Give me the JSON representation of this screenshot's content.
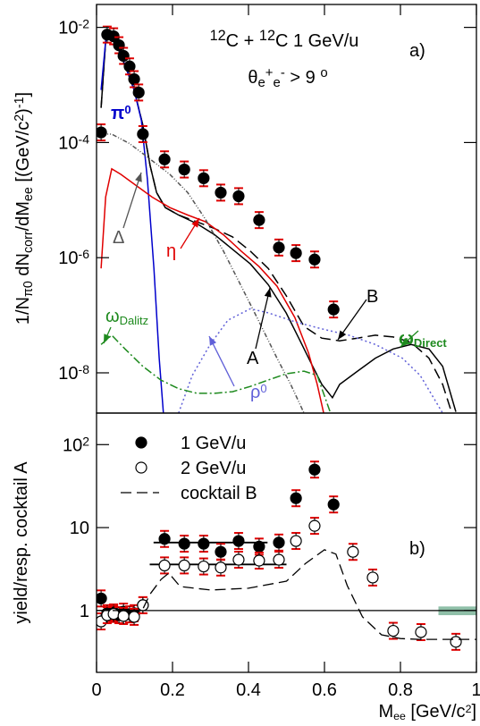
{
  "chart_data": [
    {
      "type": "line",
      "title": [
        {
          "t": "12",
          "s": "sup"
        },
        {
          "t": "C + "
        },
        {
          "t": "12",
          "s": "sup"
        },
        {
          "t": "C  1 GeV/u"
        }
      ],
      "subtitle": [
        {
          "t": "θ"
        },
        {
          "t": "e",
          "s": "sub"
        },
        {
          "t": "+",
          "s": "sup"
        },
        {
          "t": "e",
          "s": "sub"
        },
        {
          "t": "-",
          "s": "sup"
        },
        {
          "t": " > 9 "
        },
        {
          "t": "o",
          "s": "sup"
        }
      ],
      "panel_label": "a)",
      "y_label": [
        {
          "t": "1/N"
        },
        {
          "t": "π",
          "s": "sub"
        },
        {
          "t": "0",
          "s": "sub"
        },
        {
          "t": " dN"
        },
        {
          "t": "corr",
          "s": "sub"
        },
        {
          "t": "/dM"
        },
        {
          "t": "ee",
          "s": "sub"
        },
        {
          "t": "  [(GeV/c"
        },
        {
          "t": "2",
          "s": "sup"
        },
        {
          "t": ")"
        },
        {
          "t": "-1",
          "s": "sup"
        },
        {
          "t": "]"
        }
      ],
      "ylog": true,
      "xlim": [
        0,
        1
      ],
      "ylim": [
        2e-09,
        0.025
      ],
      "yticks": [
        {
          "value": 1e-08,
          "label": "10",
          "exponent": "-8"
        },
        {
          "value": 1e-06,
          "label": "10",
          "exponent": "-6"
        },
        {
          "value": 0.0001,
          "label": "10",
          "exponent": "-4"
        },
        {
          "value": 0.01,
          "label": "10",
          "exponent": "-2"
        }
      ],
      "points": {
        "color": "#000000",
        "error_color": "#e00000",
        "x": [
          0.012,
          0.028,
          0.045,
          0.059,
          0.071,
          0.087,
          0.099,
          0.111,
          0.122,
          0.179,
          0.231,
          0.282,
          0.327,
          0.374,
          0.428,
          0.48,
          0.525,
          0.574,
          0.624
        ],
        "values": [
          0.00015,
          0.0075,
          0.007,
          0.0049,
          0.0032,
          0.0021,
          0.00126,
          0.00074,
          0.00014,
          5.1e-05,
          3.4e-05,
          2.4e-05,
          1.35e-05,
          1.17e-05,
          4.5e-06,
          1.5e-06,
          1.2e-06,
          9.3e-07,
          1.26e-07
        ]
      },
      "curves": [
        {
          "color": "#000000",
          "dash": "none",
          "x": [
            0.012,
            0.024,
            0.035,
            0.052,
            0.075,
            0.099,
            0.122,
            0.141,
            0.158,
            0.181,
            0.216,
            0.264,
            0.311,
            0.358,
            0.405,
            0.452,
            0.499,
            0.534,
            0.569,
            0.593,
            0.621,
            0.64,
            0.687,
            0.734,
            0.781,
            0.828,
            0.875,
            0.911,
            0.946
          ],
          "values": [
            0.0004,
            0.0058,
            0.0075,
            0.0053,
            0.0022,
            0.00082,
            0.0002,
            4e-05,
            1.35e-05,
            7.4e-06,
            5.5e-06,
            3.9e-06,
            2.5e-06,
            1.4e-06,
            7.8e-07,
            3.4e-07,
            1.1e-07,
            3.8e-08,
            1.3e-08,
            6.3e-09,
            3.7e-09,
            6.3e-09,
            1.07e-08,
            1.8e-08,
            2.6e-08,
            3.1e-08,
            2.6e-08,
            1.3e-08,
            2.1e-09
          ]
        },
        {
          "color": "#000000",
          "dash": "12,6",
          "x": [
            0.012,
            0.024,
            0.035,
            0.052,
            0.075,
            0.099,
            0.122,
            0.141,
            0.158,
            0.181,
            0.216,
            0.264,
            0.311,
            0.358,
            0.405,
            0.452,
            0.499,
            0.546,
            0.593,
            0.64,
            0.687,
            0.734,
            0.781,
            0.828,
            0.875,
            0.911,
            0.934
          ],
          "values": [
            0.0004,
            0.0058,
            0.0075,
            0.0053,
            0.0022,
            0.00082,
            0.0002,
            4e-05,
            1.35e-05,
            7.4e-06,
            5.5e-06,
            4.2e-06,
            3.2e-06,
            2.3e-06,
            1.3e-06,
            6.5e-07,
            2.2e-07,
            6.4e-08,
            4e-08,
            3.6e-08,
            4e-08,
            4.5e-08,
            4.2e-08,
            3.4e-08,
            1.8e-08,
            6.3e-09,
            2.1e-09
          ]
        },
        {
          "color": "#0000cc",
          "dash": "none",
          "x": [
            0.012,
            0.024,
            0.035,
            0.052,
            0.075,
            0.099,
            0.118,
            0.134,
            0.151,
            0.165,
            0.176
          ],
          "values": [
            0.00082,
            0.0058,
            0.007,
            0.0053,
            0.0022,
            0.00082,
            0.00024,
            2.3e-05,
            6.5e-07,
            1.8e-08,
            2e-09
          ]
        },
        {
          "color": "#e00000",
          "dash": "none",
          "x": [
            0.012,
            0.024,
            0.04,
            0.064,
            0.099,
            0.146,
            0.193,
            0.24,
            0.287,
            0.334,
            0.381,
            0.428,
            0.475,
            0.522,
            0.558,
            0.581,
            0.598
          ],
          "values": [
            6.5e-07,
            1.13e-05,
            3.5e-05,
            2.8e-05,
            1.9e-05,
            1.13e-05,
            7.4e-06,
            5.5e-06,
            4.2e-06,
            2.5e-06,
            1.3e-06,
            7e-07,
            3.2e-07,
            9.1e-08,
            2.2e-08,
            6.3e-09,
            2e-09
          ]
        },
        {
          "color": "#555555",
          "dash": "5,2,1,2,1,2",
          "x": [
            0.012,
            0.04,
            0.087,
            0.134,
            0.193,
            0.24,
            0.287,
            0.334,
            0.381,
            0.428,
            0.475,
            0.511,
            0.546
          ],
          "values": [
            0.00014,
            0.00014,
            9.6e-05,
            5.6e-05,
            2.8e-05,
            1.35e-05,
            4.6e-06,
            1.3e-06,
            3.2e-07,
            7.7e-08,
            1.8e-08,
            6.3e-09,
            2e-09
          ]
        },
        {
          "color": "#6060d8",
          "dash": "2,3",
          "x": [
            0.216,
            0.252,
            0.299,
            0.346,
            0.405,
            0.452,
            0.522,
            0.593,
            0.664,
            0.734,
            0.805,
            0.852,
            0.887,
            0.911
          ],
          "values": [
            2e-09,
            9e-09,
            3.1e-08,
            8.2e-08,
            1.3e-07,
            1.1e-07,
            7.7e-08,
            5.8e-08,
            4.5e-08,
            3.1e-08,
            1.8e-08,
            9e-09,
            3.7e-09,
            2e-09
          ]
        },
        {
          "color": "#1e8a1e",
          "dash": "9,3,2,3",
          "x": [
            0.012,
            0.04,
            0.075,
            0.122,
            0.169,
            0.216,
            0.264,
            0.311,
            0.358,
            0.405,
            0.452,
            0.499,
            0.546,
            0.581,
            0.616
          ],
          "values": [
            3.1e-08,
            4.5e-08,
            2.6e-08,
            1.3e-08,
            7.5e-09,
            5.3e-09,
            4.4e-09,
            4.4e-09,
            4.7e-09,
            5.8e-09,
            7.5e-09,
            9.6e-09,
            1.07e-08,
            9e-09,
            2e-09
          ]
        }
      ],
      "annotations": [
        {
          "color": "#0000cc",
          "text": [
            {
              "t": "π"
            },
            {
              "t": "0",
              "s": "sup"
            }
          ]
        },
        {
          "color": "#555555",
          "text": [
            {
              "t": "Δ"
            }
          ]
        },
        {
          "color": "#e00000",
          "text": [
            {
              "t": "η"
            }
          ]
        },
        {
          "color": "#1e8a1e",
          "text": [
            {
              "t": "ω"
            },
            {
              "t": "Dalitz",
              "s": "sub"
            }
          ]
        },
        {
          "color": "#6060d8",
          "text": [
            {
              "t": "ρ"
            },
            {
              "t": "0",
              "s": "sup"
            }
          ]
        },
        {
          "color": "#000000",
          "text": [
            {
              "t": "A"
            }
          ]
        },
        {
          "color": "#000000",
          "text": [
            {
              "t": "B"
            }
          ]
        },
        {
          "color": "#1e8a1e",
          "text": [
            {
              "t": "ω"
            },
            {
              "t": "Direct",
              "s": "sub"
            }
          ]
        }
      ]
    },
    {
      "type": "scatter",
      "panel_label": "b)",
      "y_label": [
        {
          "t": "yield/resp. cocktail A"
        }
      ],
      "x_label": [
        {
          "t": "M"
        },
        {
          "t": "ee",
          "s": "sub"
        },
        {
          "t": " [GeV/c"
        },
        {
          "t": "2",
          "s": "sup"
        },
        {
          "t": "]"
        }
      ],
      "ylog": true,
      "xlim": [
        0,
        1
      ],
      "ylim": [
        0.18,
        240
      ],
      "xticks": [
        0,
        0.2,
        0.4,
        0.6,
        0.8,
        1
      ],
      "yticks": [
        1,
        10,
        {
          "value": 100,
          "label": "10",
          "exponent": "2"
        }
      ],
      "reference_line": 1,
      "band": {
        "x": [
          0.9,
          1.0
        ],
        "y": [
          0.88,
          1.12
        ],
        "color": "#8fbfa8"
      },
      "series": [
        {
          "name": "1 GeV/u",
          "marker": "filled",
          "color": "#000000",
          "error_color": "#e00000",
          "x": [
            0.012,
            0.028,
            0.045,
            0.059,
            0.071,
            0.087,
            0.099,
            0.122,
            0.179,
            0.231,
            0.282,
            0.327,
            0.374,
            0.428,
            0.48,
            0.525,
            0.574,
            0.624
          ],
          "values": [
            1.4,
            0.93,
            0.95,
            0.88,
            0.97,
            0.9,
            0.93,
            1.16,
            7.3,
            6.4,
            6.4,
            5.1,
            6.9,
            5.9,
            6.6,
            22.6,
            50,
            19
          ],
          "fit": {
            "x": [
              0.15,
              0.45
            ],
            "values": [
              6.6,
              6.6
            ]
          }
        },
        {
          "name": "2 GeV/u",
          "marker": "open",
          "color": "#000000",
          "error_color": "#e00000",
          "x": [
            0.012,
            0.028,
            0.045,
            0.071,
            0.099,
            0.122,
            0.179,
            0.231,
            0.282,
            0.327,
            0.374,
            0.428,
            0.48,
            0.525,
            0.574,
            0.675,
            0.727,
            0.781,
            0.854,
            0.946
          ],
          "values": [
            0.74,
            0.88,
            0.91,
            0.86,
            0.84,
            1.16,
            3.5,
            3.5,
            3.4,
            3.3,
            4.1,
            4.0,
            4.1,
            6.9,
            10.5,
            5.1,
            2.5,
            0.57,
            0.55,
            0.42
          ],
          "fit": {
            "x": [
              0.14,
              0.5
            ],
            "values": [
              3.6,
              3.6
            ]
          }
        },
        {
          "name": "cocktail B",
          "marker": "line",
          "color": "#000000",
          "dash": "12,6",
          "x": [
            0,
            0.12,
            0.14,
            0.17,
            0.19,
            0.22,
            0.3,
            0.4,
            0.5,
            0.55,
            0.6,
            0.63,
            0.66,
            0.7,
            0.75,
            0.8,
            0.85,
            0.9,
            1.0
          ],
          "values": [
            1,
            1,
            1.56,
            2.38,
            2.83,
            1.95,
            1.77,
            1.86,
            2.26,
            3.7,
            5.4,
            4.8,
            2.0,
            0.84,
            0.51,
            0.46,
            0.45,
            0.45,
            0.45
          ]
        }
      ]
    }
  ]
}
